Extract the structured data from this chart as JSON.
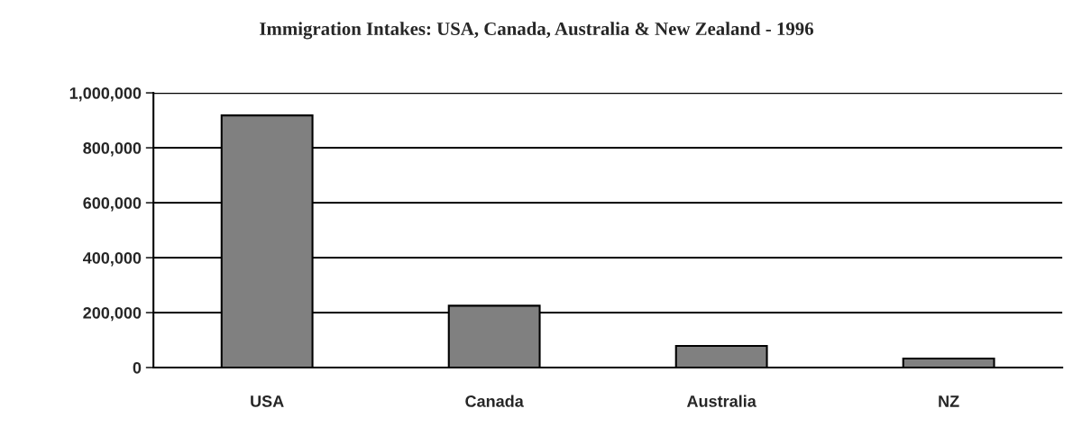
{
  "chart_data": {
    "type": "bar",
    "title": "Immigration Intakes: USA, Canada, Australia & New Zealand - 1996",
    "categories": [
      "USA",
      "Canada",
      "Australia",
      "NZ"
    ],
    "values": [
      918000,
      225000,
      79000,
      33000
    ],
    "color": "#808080",
    "ylim": [
      0,
      1000000
    ],
    "yticks": [
      {
        "value": 0,
        "label": "0"
      },
      {
        "value": 200000,
        "label": "200,000"
      },
      {
        "value": 400000,
        "label": "400,000"
      },
      {
        "value": 600000,
        "label": "600,000"
      },
      {
        "value": 800000,
        "label": "800,000"
      },
      {
        "value": 1000000,
        "label": "1,000,000"
      }
    ],
    "grid": "y"
  }
}
